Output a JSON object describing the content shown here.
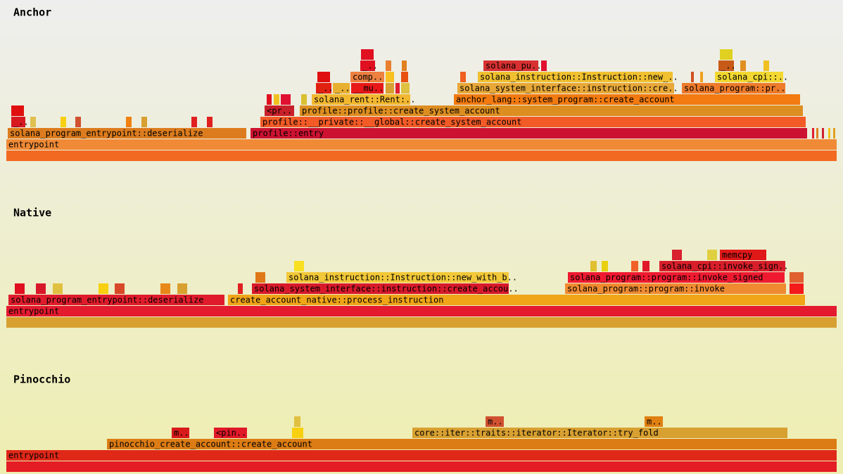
{
  "sections": [
    {
      "title": "Anchor",
      "frames": [
        "entrypoint",
        "solana_program_entrypoint::deserialize",
        "profile::entry",
        "profile::__private::__global::create_system_account",
        "<pr..",
        "profile::profile::create_system_account",
        "solana_rent::Rent:..",
        "anchor_lang::system_program::create_account",
        "_..",
        "_..",
        "__mu..",
        "solana_system_interface::instruction::cre..",
        "solana_program::pr..",
        "comp..",
        "solana_instruction::Instruction::new_..",
        "solana_cpi::..",
        "_..",
        "solana_pu..",
        "_..",
        "_.."
      ]
    },
    {
      "title": "Native",
      "frames": [
        "entrypoint",
        "solana_program_entrypoint::deserialize",
        "create_account_native::process_instruction",
        "solana_system_interface::instruction::create_accou..",
        "solana_program::program::invoke",
        "solana_instruction::Instruction::new_with_b..",
        "solana_program::program::invoke_signed",
        "solana_cpi::invoke_sign..",
        "memcpy"
      ]
    },
    {
      "title": "Pinocchio",
      "frames": [
        "entrypoint",
        "pinocchio_create_account::create_account",
        "m..",
        "<pin..",
        "core::iter::traits::iterator::Iterator::try_fold",
        "m..",
        "m.."
      ]
    }
  ]
}
